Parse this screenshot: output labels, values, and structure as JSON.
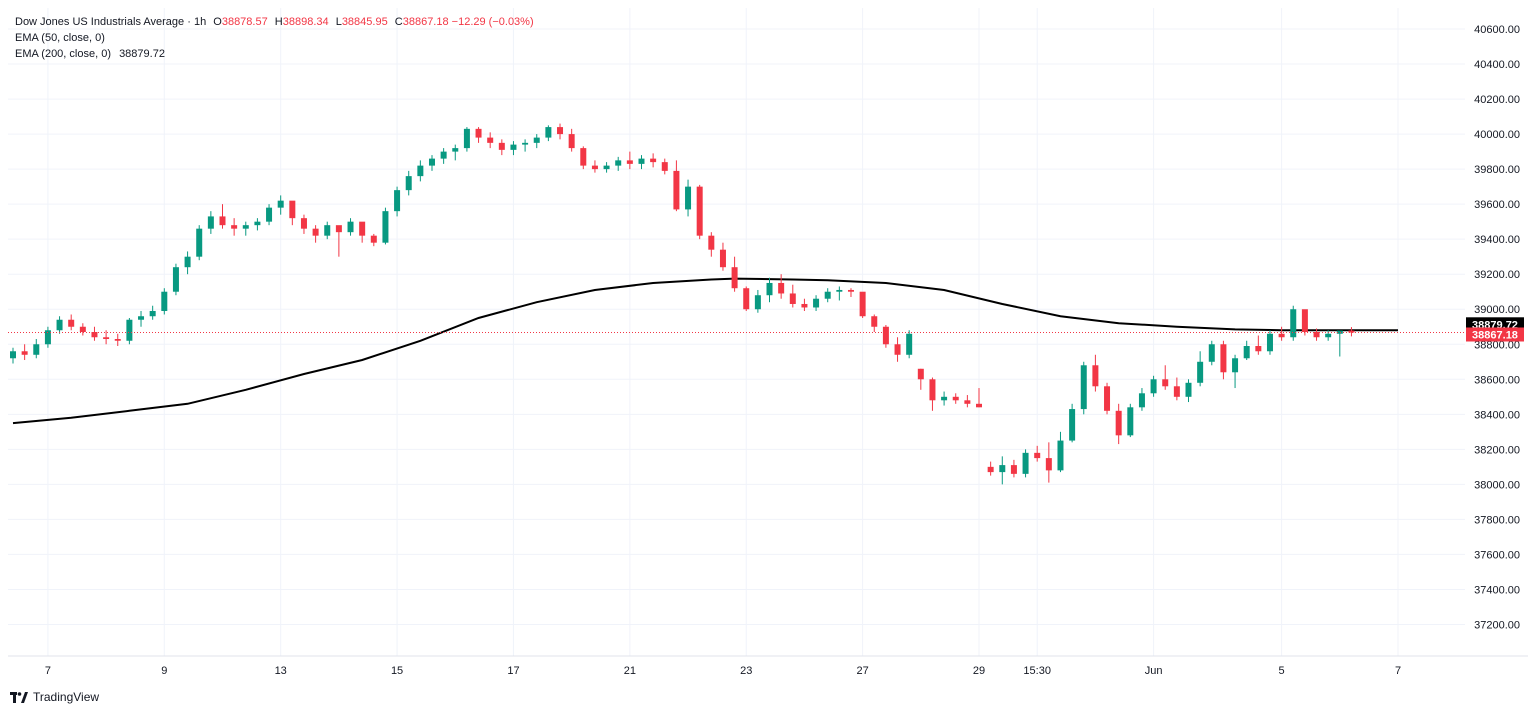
{
  "legend": {
    "symbol": "Dow Jones US Industrials Average",
    "interval": "1h",
    "open_label": "O",
    "open": "38878.57",
    "high_label": "H",
    "high": "38898.34",
    "low_label": "L",
    "low": "38845.95",
    "close_label": "C",
    "close": "38867.18",
    "change": "−12.29 (−0.03%)",
    "ema50_label": "EMA (50, close, 0)",
    "ema200_label": "EMA (200, close, 0)",
    "ema200_value": "38879.72"
  },
  "branding": {
    "logo_text": "TradingView"
  },
  "colors": {
    "up": "#089981",
    "down": "#f23645",
    "ema": "#000000",
    "grid": "#f0f3fa",
    "axis_text": "#131722"
  },
  "chart_data": {
    "type": "candlestick",
    "ylim": [
      37020,
      40720
    ],
    "y_ticks": [
      37200,
      37400,
      37600,
      37800,
      38000,
      38200,
      38400,
      38600,
      38800,
      39000,
      39200,
      39400,
      39600,
      39800,
      40000,
      40200,
      40400,
      40600
    ],
    "x_range": [
      0,
      119
    ],
    "x_ticks": [
      {
        "i": 3,
        "label": "7"
      },
      {
        "i": 13,
        "label": "9"
      },
      {
        "i": 23,
        "label": "13"
      },
      {
        "i": 33,
        "label": "15"
      },
      {
        "i": 43,
        "label": "17"
      },
      {
        "i": 53,
        "label": "21"
      },
      {
        "i": 63,
        "label": "23"
      },
      {
        "i": 73,
        "label": "27"
      },
      {
        "i": 83,
        "label": "29"
      },
      {
        "i": 88,
        "label": "15:30"
      },
      {
        "i": 98,
        "label": "Jun"
      },
      {
        "i": 109,
        "label": "5"
      },
      {
        "i": 119,
        "label": "7"
      }
    ],
    "last_price_marker": {
      "value": 38867.18,
      "label": "38867.18"
    },
    "ema200_marker": {
      "value": 38879.72,
      "label": "38879.72"
    },
    "candles": [
      [
        38720,
        38780,
        38690,
        38760
      ],
      [
        38760,
        38800,
        38710,
        38740
      ],
      [
        38740,
        38830,
        38720,
        38800
      ],
      [
        38800,
        38900,
        38780,
        38880
      ],
      [
        38880,
        38960,
        38860,
        38940
      ],
      [
        38940,
        38970,
        38880,
        38900
      ],
      [
        38900,
        38920,
        38850,
        38870
      ],
      [
        38870,
        38900,
        38820,
        38840
      ],
      [
        38840,
        38880,
        38800,
        38830
      ],
      [
        38830,
        38860,
        38790,
        38820
      ],
      [
        38820,
        38950,
        38800,
        38940
      ],
      [
        38940,
        38990,
        38900,
        38960
      ],
      [
        38960,
        39020,
        38940,
        38990
      ],
      [
        38990,
        39120,
        38970,
        39100
      ],
      [
        39100,
        39260,
        39080,
        39240
      ],
      [
        39240,
        39330,
        39200,
        39300
      ],
      [
        39300,
        39480,
        39280,
        39460
      ],
      [
        39460,
        39560,
        39430,
        39530
      ],
      [
        39530,
        39600,
        39460,
        39480
      ],
      [
        39480,
        39520,
        39420,
        39460
      ],
      [
        39460,
        39500,
        39420,
        39480
      ],
      [
        39480,
        39520,
        39450,
        39500
      ],
      [
        39500,
        39600,
        39480,
        39580
      ],
      [
        39580,
        39650,
        39540,
        39620
      ],
      [
        39620,
        39600,
        39480,
        39520
      ],
      [
        39520,
        39540,
        39430,
        39460
      ],
      [
        39460,
        39480,
        39380,
        39420
      ],
      [
        39420,
        39500,
        39400,
        39480
      ],
      [
        39480,
        39460,
        39300,
        39440
      ],
      [
        39440,
        39520,
        39420,
        39500
      ],
      [
        39500,
        39480,
        39380,
        39420
      ],
      [
        39420,
        39430,
        39360,
        39380
      ],
      [
        39380,
        39580,
        39370,
        39560
      ],
      [
        39560,
        39700,
        39530,
        39680
      ],
      [
        39680,
        39790,
        39650,
        39760
      ],
      [
        39760,
        39850,
        39730,
        39820
      ],
      [
        39820,
        39880,
        39790,
        39860
      ],
      [
        39860,
        39920,
        39830,
        39900
      ],
      [
        39900,
        39940,
        39850,
        39920
      ],
      [
        39920,
        40040,
        39900,
        40030
      ],
      [
        40030,
        40040,
        39950,
        39980
      ],
      [
        39980,
        40010,
        39920,
        39950
      ],
      [
        39950,
        39970,
        39880,
        39910
      ],
      [
        39910,
        39960,
        39880,
        39940
      ],
      [
        39940,
        39970,
        39900,
        39950
      ],
      [
        39950,
        40000,
        39920,
        39980
      ],
      [
        39980,
        40050,
        39960,
        40040
      ],
      [
        40040,
        40060,
        39970,
        40000
      ],
      [
        40000,
        40030,
        39900,
        39920
      ],
      [
        39920,
        39930,
        39800,
        39820
      ],
      [
        39820,
        39850,
        39780,
        39800
      ],
      [
        39800,
        39840,
        39780,
        39820
      ],
      [
        39820,
        39870,
        39790,
        39850
      ],
      [
        39850,
        39900,
        39800,
        39830
      ],
      [
        39830,
        39880,
        39800,
        39860
      ],
      [
        39860,
        39890,
        39810,
        39840
      ],
      [
        39840,
        39860,
        39770,
        39790
      ],
      [
        39790,
        39850,
        39560,
        39570
      ],
      [
        39570,
        39740,
        39530,
        39700
      ],
      [
        39700,
        39710,
        39400,
        39420
      ],
      [
        39420,
        39440,
        39300,
        39340
      ],
      [
        39340,
        39380,
        39220,
        39240
      ],
      [
        39240,
        39300,
        39100,
        39120
      ],
      [
        39120,
        39130,
        38990,
        39000
      ],
      [
        39000,
        39110,
        38980,
        39080
      ],
      [
        39080,
        39180,
        39040,
        39150
      ],
      [
        39150,
        39200,
        39060,
        39090
      ],
      [
        39090,
        39140,
        39010,
        39030
      ],
      [
        39030,
        39060,
        38990,
        39010
      ],
      [
        39010,
        39080,
        38990,
        39060
      ],
      [
        39060,
        39120,
        39040,
        39100
      ],
      [
        39100,
        39130,
        39050,
        39110
      ],
      [
        39110,
        39120,
        39070,
        39100
      ],
      [
        39100,
        39080,
        38950,
        38960
      ],
      [
        38960,
        38970,
        38870,
        38900
      ],
      [
        38900,
        38910,
        38780,
        38800
      ],
      [
        38800,
        38840,
        38700,
        38740
      ],
      [
        38740,
        38880,
        38720,
        38860
      ],
      [
        38660,
        38660,
        38540,
        38600
      ],
      [
        38600,
        38610,
        38420,
        38480
      ],
      [
        38480,
        38530,
        38450,
        38500
      ],
      [
        38500,
        38520,
        38460,
        38480
      ],
      [
        38480,
        38510,
        38440,
        38460
      ],
      [
        38460,
        38550,
        38440,
        38440
      ],
      [
        38100,
        38130,
        38050,
        38070
      ],
      [
        38070,
        38160,
        38000,
        38110
      ],
      [
        38110,
        38140,
        38040,
        38060
      ],
      [
        38060,
        38200,
        38040,
        38180
      ],
      [
        38180,
        38220,
        38130,
        38150
      ],
      [
        38150,
        38240,
        38010,
        38080
      ],
      [
        38080,
        38300,
        38070,
        38250
      ],
      [
        38250,
        38460,
        38240,
        38430
      ],
      [
        38430,
        38700,
        38400,
        38680
      ],
      [
        38680,
        38740,
        38530,
        38560
      ],
      [
        38560,
        38580,
        38400,
        38420
      ],
      [
        38420,
        38460,
        38230,
        38280
      ],
      [
        38280,
        38460,
        38270,
        38440
      ],
      [
        38440,
        38550,
        38420,
        38520
      ],
      [
        38520,
        38620,
        38500,
        38600
      ],
      [
        38600,
        38680,
        38540,
        38560
      ],
      [
        38560,
        38610,
        38480,
        38500
      ],
      [
        38500,
        38600,
        38470,
        38580
      ],
      [
        38580,
        38760,
        38560,
        38700
      ],
      [
        38700,
        38820,
        38680,
        38800
      ],
      [
        38800,
        38820,
        38600,
        38640
      ],
      [
        38640,
        38740,
        38550,
        38720
      ],
      [
        38720,
        38820,
        38710,
        38790
      ],
      [
        38790,
        38850,
        38740,
        38760
      ],
      [
        38760,
        38880,
        38740,
        38860
      ],
      [
        38860,
        38900,
        38820,
        38840
      ],
      [
        38840,
        39020,
        38820,
        39000
      ],
      [
        39000,
        38990,
        38850,
        38870
      ],
      [
        38870,
        38890,
        38820,
        38840
      ],
      [
        38840,
        38880,
        38820,
        38860
      ],
      [
        38860,
        38870,
        38730,
        38878
      ],
      [
        38878,
        38898,
        38845,
        38867
      ]
    ],
    "ema200": [
      [
        0,
        38350
      ],
      [
        5,
        38380
      ],
      [
        10,
        38420
      ],
      [
        15,
        38460
      ],
      [
        20,
        38540
      ],
      [
        25,
        38630
      ],
      [
        30,
        38710
      ],
      [
        35,
        38820
      ],
      [
        40,
        38950
      ],
      [
        45,
        39040
      ],
      [
        50,
        39110
      ],
      [
        55,
        39150
      ],
      [
        60,
        39170
      ],
      [
        62,
        39175
      ],
      [
        67,
        39170
      ],
      [
        70,
        39165
      ],
      [
        75,
        39150
      ],
      [
        80,
        39110
      ],
      [
        85,
        39030
      ],
      [
        90,
        38960
      ],
      [
        95,
        38920
      ],
      [
        100,
        38900
      ],
      [
        105,
        38885
      ],
      [
        109,
        38880
      ],
      [
        119,
        38879.72
      ]
    ],
    "gap_after_indices": [
      77,
      83
    ]
  }
}
